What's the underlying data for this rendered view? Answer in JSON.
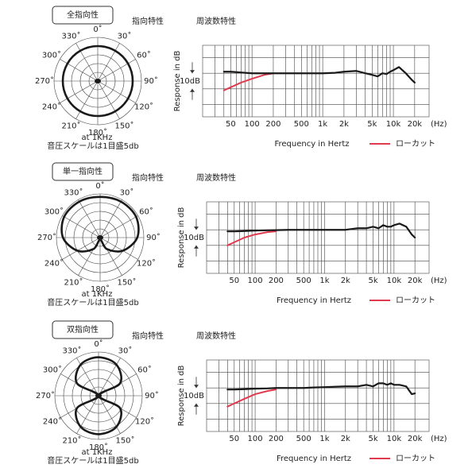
{
  "chart_data": [
    {
      "type": "polar",
      "badge": "全指向性",
      "title": "指向特性",
      "categories": [
        "0˚",
        "30˚",
        "60˚",
        "90˚",
        "120˚",
        "150˚",
        "180˚",
        "210˚",
        "240˚",
        "270˚",
        "300˚",
        "330˚"
      ],
      "values": [
        0.8,
        0.8,
        0.8,
        0.8,
        0.8,
        0.8,
        0.8,
        0.8,
        0.8,
        0.8,
        0.8,
        0.8
      ],
      "rlim": [
        0,
        1
      ],
      "rticks": [
        0.2,
        0.4,
        0.6,
        0.8,
        1
      ],
      "color": "#1a1a1a",
      "notes": [
        "at 1KHz",
        "音圧スケールは1目盛5db"
      ]
    },
    {
      "type": "line",
      "title": "周波数特性",
      "x_label": "Frequency in Hertz",
      "y_label": "Response in dB",
      "x_unit": "(Hz)",
      "log_x": true,
      "xlim": [
        20,
        32000
      ],
      "xticks": [
        50,
        100,
        200,
        500,
        {
          "value": 1000,
          "label": "1k"
        },
        {
          "value": 2000,
          "label": "2k"
        },
        {
          "value": 5000,
          "label": "5k"
        },
        {
          "value": 10000,
          "label": "10k"
        },
        {
          "value": 20000,
          "label": "20k"
        }
      ],
      "minor_xticks": [
        30,
        40,
        60,
        70,
        80,
        90,
        300,
        400,
        600,
        700,
        800,
        900,
        3000,
        4000,
        6000,
        7000,
        8000,
        9000
      ],
      "ylim": [
        -28,
        18
      ],
      "ygrid": [
        10,
        0,
        -10,
        -20
      ],
      "scale_label": "10dB",
      "legend": "bottom-right",
      "x": [
        40,
        50,
        70,
        100,
        150,
        200,
        300,
        500,
        700,
        1000,
        1500,
        2000,
        3000,
        4000,
        5000,
        6000,
        7000,
        8000,
        9000,
        10000,
        12000,
        15000,
        18000,
        20000
      ],
      "series": [
        {
          "color": "#1a1a1a",
          "values": [
            1,
            1,
            0.5,
            0,
            0,
            0,
            0,
            0,
            0,
            0,
            0.3,
            1,
            1.5,
            0,
            -1,
            -2,
            0,
            -0.5,
            1,
            2,
            4,
            0,
            -4,
            -6
          ]
        },
        {
          "name": "ローカット",
          "color": "#e03a4e",
          "values": [
            -11,
            -9,
            -6,
            -3.5,
            -1,
            0,
            null,
            null,
            null,
            null,
            null,
            null,
            null,
            null,
            null,
            null,
            null,
            null,
            null,
            null,
            null,
            null,
            null,
            null
          ]
        }
      ]
    },
    {
      "type": "polar",
      "badge": "単一指向性",
      "title": "指向特性",
      "categories": [
        "0˚",
        "30˚",
        "60˚",
        "90˚",
        "120˚",
        "150˚",
        "180˚",
        "210˚",
        "240˚",
        "270˚",
        "300˚",
        "330˚"
      ],
      "values": [
        0.93,
        0.95,
        0.95,
        0.85,
        0.6,
        0.3,
        0.05,
        0.3,
        0.6,
        0.85,
        0.95,
        0.95
      ],
      "rlim": [
        0,
        1
      ],
      "rticks": [
        0.2,
        0.4,
        0.6,
        0.8,
        1
      ],
      "color": "#1a1a1a",
      "notes": [
        "at 1KHz",
        "音圧スケールは1目盛5db"
      ]
    },
    {
      "type": "line",
      "title": "周波数特性",
      "x_label": "Frequency in Hertz",
      "y_label": "Response in dB",
      "x_unit": "(Hz)",
      "log_x": true,
      "xlim": [
        20,
        32000
      ],
      "xticks": [
        50,
        100,
        200,
        500,
        {
          "value": 1000,
          "label": "1k"
        },
        {
          "value": 2000,
          "label": "2k"
        },
        {
          "value": 5000,
          "label": "5k"
        },
        {
          "value": 10000,
          "label": "10k"
        },
        {
          "value": 20000,
          "label": "20k"
        }
      ],
      "minor_xticks": [
        30,
        40,
        60,
        70,
        80,
        90,
        300,
        400,
        600,
        700,
        800,
        900,
        3000,
        4000,
        6000,
        7000,
        8000,
        9000
      ],
      "ylim": [
        -28,
        18
      ],
      "ygrid": [
        10,
        0,
        -10,
        -20
      ],
      "scale_label": "10dB",
      "legend": "bottom-right",
      "x": [
        40,
        50,
        70,
        100,
        150,
        200,
        300,
        500,
        700,
        1000,
        1500,
        2000,
        3000,
        4000,
        5000,
        6000,
        7000,
        8000,
        9000,
        10000,
        12000,
        15000,
        18000,
        20000
      ],
      "series": [
        {
          "color": "#1a1a1a",
          "values": [
            -1,
            -1,
            -0.8,
            -0.5,
            -0.3,
            -0.2,
            0,
            0,
            0,
            0,
            0,
            0,
            1,
            1,
            2,
            1,
            3,
            2,
            2,
            3,
            4,
            2,
            -3,
            -5
          ]
        },
        {
          "name": "ローカット",
          "color": "#e03a4e",
          "values": [
            -10,
            -8,
            -5,
            -3,
            -1.5,
            -1,
            null,
            null,
            null,
            null,
            null,
            null,
            null,
            null,
            null,
            null,
            null,
            null,
            null,
            null,
            null,
            null,
            null,
            null
          ]
        }
      ]
    },
    {
      "type": "polar",
      "badge": "双指向性",
      "title": "指向特性",
      "categories": [
        "0˚",
        "30˚",
        "60˚",
        "90˚",
        "120˚",
        "150˚",
        "180˚",
        "210˚",
        "240˚",
        "270˚",
        "300˚",
        "330˚"
      ],
      "values": [
        0.88,
        0.82,
        0.57,
        0,
        0.57,
        0.82,
        0.88,
        0.82,
        0.57,
        0,
        0.57,
        0.82
      ],
      "rlim": [
        0,
        1
      ],
      "rticks": [
        0.2,
        0.4,
        0.6,
        0.8,
        1
      ],
      "color": "#1a1a1a",
      "notes": [
        "at 1KHz",
        "音圧スケールは1目盛5db"
      ]
    },
    {
      "type": "line",
      "title": "周波数特性",
      "x_label": "Frequency in Hertz",
      "y_label": "Response in dB",
      "x_unit": "(Hz)",
      "log_x": true,
      "xlim": [
        20,
        32000
      ],
      "xticks": [
        50,
        100,
        200,
        500,
        {
          "value": 1000,
          "label": "1k"
        },
        {
          "value": 2000,
          "label": "2k"
        },
        {
          "value": 5000,
          "label": "5k"
        },
        {
          "value": 10000,
          "label": "10k"
        },
        {
          "value": 20000,
          "label": "20k"
        }
      ],
      "minor_xticks": [
        30,
        40,
        60,
        70,
        80,
        90,
        300,
        400,
        600,
        700,
        800,
        900,
        3000,
        4000,
        6000,
        7000,
        8000,
        9000
      ],
      "ylim": [
        -28,
        18
      ],
      "ygrid": [
        10,
        0,
        -10,
        -20
      ],
      "scale_label": "10dB",
      "legend": "bottom-right",
      "x": [
        40,
        50,
        70,
        100,
        150,
        200,
        300,
        500,
        700,
        1000,
        1500,
        2000,
        3000,
        4000,
        5000,
        6000,
        7000,
        8000,
        9000,
        10000,
        12000,
        15000,
        18000,
        20000
      ],
      "series": [
        {
          "color": "#1a1a1a",
          "values": [
            -1,
            -1,
            -0.8,
            -0.5,
            -0.3,
            0,
            0,
            0,
            0.3,
            0.5,
            0.8,
            1,
            1,
            2,
            1,
            3,
            3,
            2,
            3,
            2,
            2,
            1,
            -4,
            -3.5
          ]
        },
        {
          "name": "ローカット",
          "color": "#e03a4e",
          "values": [
            -12,
            -10,
            -7,
            -4,
            -2,
            -1,
            null,
            null,
            null,
            null,
            null,
            null,
            null,
            null,
            null,
            null,
            null,
            null,
            null,
            null,
            null,
            null,
            null,
            null
          ]
        }
      ]
    }
  ]
}
